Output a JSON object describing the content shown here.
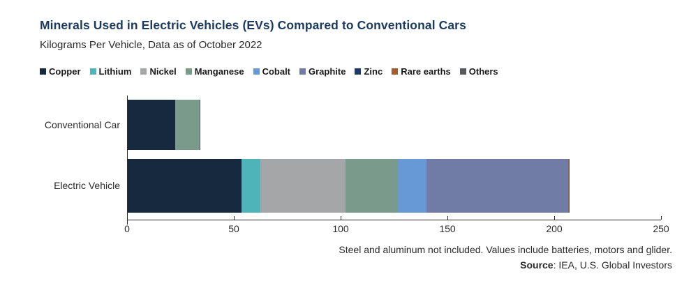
{
  "chart_data": {
    "type": "bar",
    "orientation": "horizontal",
    "stacked": true,
    "title": "Minerals Used in Electric Vehicles (EVs) Compared to Conventional Cars",
    "subtitle": "Kilograms Per Vehicle, Data as of October 2022",
    "categories": [
      "Conventional Car",
      "Electric Vehicle"
    ],
    "unit": "kilograms per vehicle",
    "xlim": [
      0,
      250
    ],
    "xticks": [
      0,
      50,
      100,
      150,
      200,
      250
    ],
    "grid": false,
    "legend_position": "top",
    "series": [
      {
        "name": "Copper",
        "color": "#16293e",
        "values": [
          22.3,
          53.2
        ]
      },
      {
        "name": "Lithium",
        "color": "#4fb3ba",
        "values": [
          0,
          8.9
        ]
      },
      {
        "name": "Nickel",
        "color": "#a5a6a8",
        "values": [
          0,
          39.9
        ]
      },
      {
        "name": "Manganese",
        "color": "#7a9a8b",
        "values": [
          11.2,
          24.5
        ]
      },
      {
        "name": "Cobalt",
        "color": "#6699d6",
        "values": [
          0,
          13.3
        ]
      },
      {
        "name": "Graphite",
        "color": "#707ca6",
        "values": [
          0,
          66.3
        ]
      },
      {
        "name": "Zinc",
        "color": "#1f3a66",
        "values": [
          0.1,
          0.1
        ]
      },
      {
        "name": "Rare earths",
        "color": "#a15c2f",
        "values": [
          0,
          0.5
        ]
      },
      {
        "name": "Others",
        "color": "#58595b",
        "values": [
          0.3,
          0.3
        ]
      }
    ]
  },
  "footnote": {
    "line1": "Steel and aluminum not included. Values include batteries, motors and glider.",
    "source_label": "Source",
    "source_rest": ": IEA, U.S. Global Investors"
  },
  "colors": {
    "title": "#1b3a5e",
    "axis": "#2a2a2a",
    "background": "#ffffff"
  }
}
